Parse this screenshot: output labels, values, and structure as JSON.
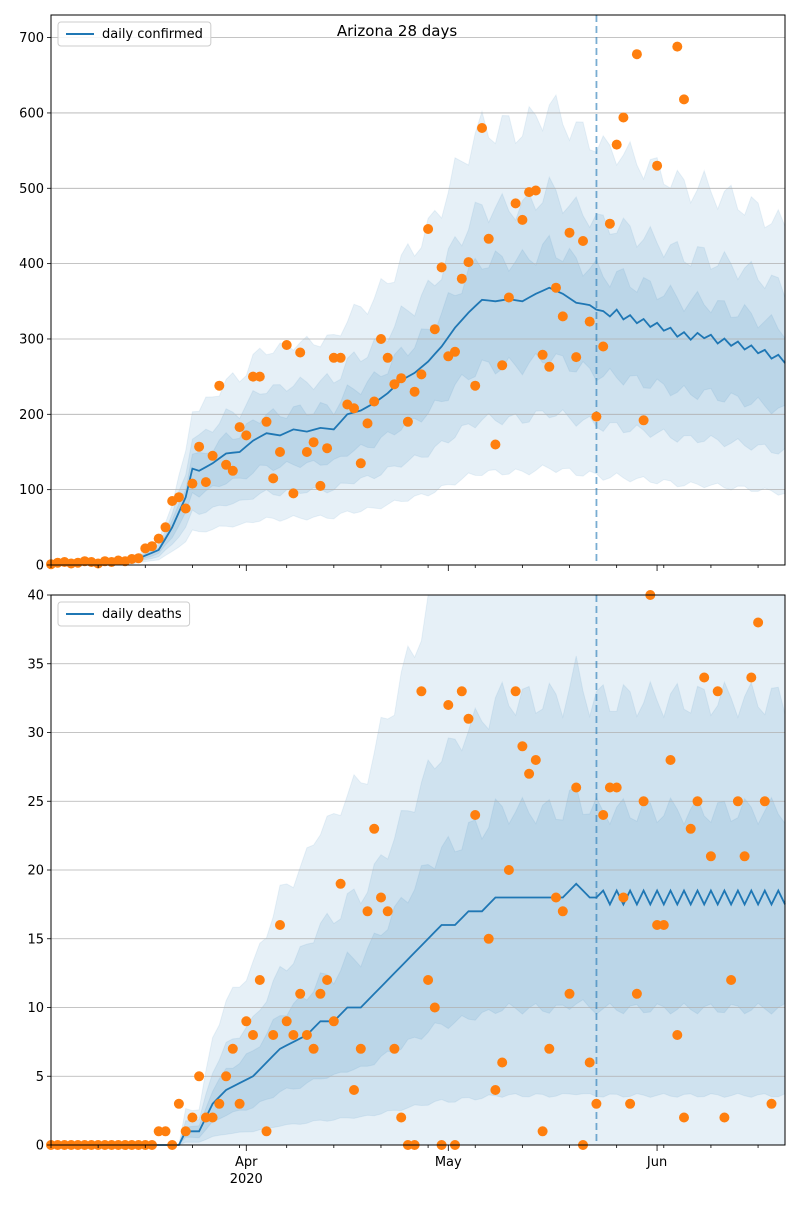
{
  "chart_data": [
    {
      "type": "line",
      "title": "Arizona 28 days",
      "legend": {
        "placement": "upper-left",
        "label": "daily confirmed"
      },
      "x_start": "2020-03-03",
      "x_end": "2020-06-20",
      "forecast_start": "2020-05-23",
      "ylim": [
        0,
        730
      ],
      "yticks": [
        0,
        100,
        200,
        300,
        400,
        500,
        600,
        700
      ],
      "xticks": [
        {
          "date": "2020-04-01",
          "label": "Apr",
          "sublabel": "2020"
        },
        {
          "date": "2020-05-01",
          "label": "May",
          "sublabel": ""
        },
        {
          "date": "2020-06-01",
          "label": "Jun",
          "sublabel": ""
        }
      ],
      "grid": "horizontal",
      "colors": {
        "line": "#1f77b4",
        "points": "#ff7f0e",
        "band": "#1f77b4"
      },
      "median_anchors": [
        [
          0,
          0
        ],
        [
          8,
          1
        ],
        [
          12,
          5
        ],
        [
          16,
          20
        ],
        [
          18,
          50
        ],
        [
          20,
          90
        ],
        [
          21,
          128
        ],
        [
          22,
          125
        ],
        [
          24,
          135
        ],
        [
          26,
          148
        ],
        [
          28,
          150
        ],
        [
          30,
          165
        ],
        [
          32,
          175
        ],
        [
          34,
          172
        ],
        [
          36,
          180
        ],
        [
          38,
          177
        ],
        [
          40,
          182
        ],
        [
          42,
          180
        ],
        [
          44,
          200
        ],
        [
          46,
          205
        ],
        [
          48,
          215
        ],
        [
          50,
          228
        ],
        [
          52,
          245
        ],
        [
          54,
          255
        ],
        [
          56,
          270
        ],
        [
          58,
          290
        ],
        [
          60,
          315
        ],
        [
          62,
          335
        ],
        [
          64,
          352
        ],
        [
          66,
          350
        ],
        [
          68,
          353
        ],
        [
          70,
          350
        ],
        [
          72,
          360
        ],
        [
          74,
          368
        ],
        [
          76,
          360
        ],
        [
          78,
          348
        ],
        [
          80,
          345
        ],
        [
          82,
          333
        ],
        [
          84,
          335
        ],
        [
          85,
          330
        ],
        [
          87,
          325
        ],
        [
          89,
          320
        ],
        [
          91,
          315
        ],
        [
          93,
          307
        ],
        [
          95,
          303
        ],
        [
          97,
          305
        ],
        [
          99,
          298
        ],
        [
          101,
          295
        ],
        [
          103,
          290
        ],
        [
          105,
          285
        ],
        [
          107,
          278
        ],
        [
          109,
          272
        ],
        [
          111,
          270
        ],
        [
          113,
          272
        ],
        [
          115,
          265
        ]
      ],
      "band_scales": [
        [
          0.35,
          1.65
        ],
        [
          0.55,
          1.35
        ],
        [
          0.75,
          1.15
        ]
      ],
      "observed": [
        [
          0,
          1
        ],
        [
          1,
          3
        ],
        [
          2,
          4
        ],
        [
          3,
          2
        ],
        [
          4,
          3
        ],
        [
          5,
          5
        ],
        [
          6,
          4
        ],
        [
          7,
          2
        ],
        [
          8,
          5
        ],
        [
          9,
          4
        ],
        [
          10,
          6
        ],
        [
          11,
          5
        ],
        [
          12,
          8
        ],
        [
          13,
          9
        ],
        [
          14,
          22
        ],
        [
          15,
          25
        ],
        [
          16,
          35
        ],
        [
          17,
          50
        ],
        [
          18,
          85
        ],
        [
          19,
          90
        ],
        [
          20,
          75
        ],
        [
          21,
          108
        ],
        [
          22,
          157
        ],
        [
          23,
          110
        ],
        [
          24,
          145
        ],
        [
          25,
          238
        ],
        [
          26,
          133
        ],
        [
          27,
          125
        ],
        [
          28,
          183
        ],
        [
          29,
          172
        ],
        [
          30,
          250
        ],
        [
          31,
          250
        ],
        [
          32,
          190
        ],
        [
          33,
          115
        ],
        [
          34,
          150
        ],
        [
          35,
          292
        ],
        [
          36,
          95
        ],
        [
          37,
          282
        ],
        [
          38,
          150
        ],
        [
          39,
          163
        ],
        [
          40,
          105
        ],
        [
          41,
          155
        ],
        [
          42,
          275
        ],
        [
          43,
          275
        ],
        [
          44,
          213
        ],
        [
          45,
          208
        ],
        [
          46,
          135
        ],
        [
          47,
          188
        ],
        [
          48,
          217
        ],
        [
          49,
          300
        ],
        [
          50,
          275
        ],
        [
          51,
          240
        ],
        [
          52,
          248
        ],
        [
          53,
          190
        ],
        [
          54,
          230
        ],
        [
          55,
          253
        ],
        [
          56,
          446
        ],
        [
          57,
          313
        ],
        [
          58,
          395
        ],
        [
          59,
          277
        ],
        [
          60,
          283
        ],
        [
          61,
          380
        ],
        [
          62,
          402
        ],
        [
          63,
          238
        ],
        [
          64,
          580
        ],
        [
          65,
          433
        ],
        [
          66,
          160
        ],
        [
          67,
          265
        ],
        [
          68,
          355
        ],
        [
          69,
          480
        ],
        [
          70,
          458
        ],
        [
          71,
          495
        ],
        [
          72,
          497
        ],
        [
          73,
          279
        ],
        [
          74,
          263
        ],
        [
          75,
          368
        ],
        [
          76,
          330
        ],
        [
          77,
          441
        ],
        [
          78,
          276
        ],
        [
          79,
          430
        ],
        [
          80,
          323
        ],
        [
          81,
          197
        ],
        [
          82,
          290
        ],
        [
          83,
          453
        ],
        [
          84,
          558
        ],
        [
          85,
          594
        ],
        [
          87,
          678
        ],
        [
          88,
          192
        ],
        [
          90,
          530
        ],
        [
          93,
          688
        ],
        [
          94,
          618
        ]
      ]
    },
    {
      "type": "line",
      "title": "",
      "legend": {
        "placement": "upper-left",
        "label": "daily deaths"
      },
      "x_start": "2020-03-03",
      "x_end": "2020-06-20",
      "forecast_start": "2020-05-23",
      "ylim": [
        0,
        40
      ],
      "yticks": [
        0,
        5,
        10,
        15,
        20,
        25,
        30,
        35,
        40
      ],
      "xticks": [
        {
          "date": "2020-04-01",
          "label": "Apr",
          "sublabel": "2020"
        },
        {
          "date": "2020-05-01",
          "label": "May",
          "sublabel": ""
        },
        {
          "date": "2020-06-01",
          "label": "Jun",
          "sublabel": ""
        }
      ],
      "grid": "horizontal",
      "colors": {
        "line": "#1f77b4",
        "points": "#ff7f0e",
        "band": "#1f77b4"
      },
      "median_anchors": [
        [
          0,
          0
        ],
        [
          19,
          0
        ],
        [
          20,
          1
        ],
        [
          22,
          1
        ],
        [
          24,
          3
        ],
        [
          26,
          4
        ],
        [
          30,
          5
        ],
        [
          32,
          6
        ],
        [
          34,
          7
        ],
        [
          38,
          8
        ],
        [
          40,
          9
        ],
        [
          42,
          9
        ],
        [
          44,
          10
        ],
        [
          46,
          10
        ],
        [
          48,
          11
        ],
        [
          50,
          12
        ],
        [
          52,
          13
        ],
        [
          54,
          14
        ],
        [
          56,
          15
        ],
        [
          58,
          16
        ],
        [
          60,
          16
        ],
        [
          62,
          17
        ],
        [
          64,
          17
        ],
        [
          66,
          18
        ],
        [
          68,
          18
        ],
        [
          70,
          18
        ],
        [
          72,
          18
        ],
        [
          74,
          18
        ],
        [
          76,
          18
        ],
        [
          78,
          19
        ],
        [
          80,
          18
        ],
        [
          82,
          18
        ],
        [
          84,
          18
        ],
        [
          86,
          18
        ],
        [
          88,
          18
        ],
        [
          90,
          18
        ],
        [
          92,
          18
        ],
        [
          94,
          18
        ],
        [
          96,
          18
        ],
        [
          98,
          18
        ],
        [
          100,
          18
        ],
        [
          102,
          18
        ],
        [
          104,
          18
        ],
        [
          106,
          18
        ],
        [
          108,
          18
        ],
        [
          110,
          18
        ],
        [
          112,
          18
        ],
        [
          114,
          18
        ],
        [
          115,
          18
        ]
      ],
      "band_scales": [
        [
          0.0,
          2.6
        ],
        [
          0.2,
          1.8
        ],
        [
          0.55,
          1.35
        ]
      ],
      "observed": [
        [
          0,
          0
        ],
        [
          1,
          0
        ],
        [
          2,
          0
        ],
        [
          3,
          0
        ],
        [
          4,
          0
        ],
        [
          5,
          0
        ],
        [
          6,
          0
        ],
        [
          7,
          0
        ],
        [
          8,
          0
        ],
        [
          9,
          0
        ],
        [
          10,
          0
        ],
        [
          11,
          0
        ],
        [
          12,
          0
        ],
        [
          13,
          0
        ],
        [
          14,
          0
        ],
        [
          15,
          0
        ],
        [
          16,
          1
        ],
        [
          17,
          1
        ],
        [
          18,
          0
        ],
        [
          19,
          3
        ],
        [
          20,
          1
        ],
        [
          21,
          2
        ],
        [
          22,
          5
        ],
        [
          23,
          2
        ],
        [
          24,
          2
        ],
        [
          25,
          3
        ],
        [
          26,
          5
        ],
        [
          27,
          7
        ],
        [
          28,
          3
        ],
        [
          29,
          9
        ],
        [
          30,
          8
        ],
        [
          31,
          12
        ],
        [
          32,
          1
        ],
        [
          33,
          8
        ],
        [
          34,
          16
        ],
        [
          35,
          9
        ],
        [
          36,
          8
        ],
        [
          37,
          11
        ],
        [
          38,
          8
        ],
        [
          39,
          7
        ],
        [
          40,
          11
        ],
        [
          41,
          12
        ],
        [
          42,
          9
        ],
        [
          43,
          19
        ],
        [
          45,
          4
        ],
        [
          46,
          7
        ],
        [
          47,
          17
        ],
        [
          48,
          23
        ],
        [
          49,
          18
        ],
        [
          50,
          17
        ],
        [
          51,
          7
        ],
        [
          52,
          2
        ],
        [
          53,
          0
        ],
        [
          54,
          0
        ],
        [
          55,
          33
        ],
        [
          56,
          12
        ],
        [
          57,
          10
        ],
        [
          58,
          0
        ],
        [
          59,
          32
        ],
        [
          60,
          0
        ],
        [
          61,
          33
        ],
        [
          62,
          31
        ],
        [
          63,
          24
        ],
        [
          65,
          15
        ],
        [
          66,
          4
        ],
        [
          67,
          6
        ],
        [
          68,
          20
        ],
        [
          69,
          33
        ],
        [
          70,
          29
        ],
        [
          71,
          27
        ],
        [
          72,
          28
        ],
        [
          73,
          1
        ],
        [
          74,
          7
        ],
        [
          75,
          18
        ],
        [
          76,
          17
        ],
        [
          77,
          11
        ],
        [
          78,
          26
        ],
        [
          79,
          0
        ],
        [
          80,
          6
        ],
        [
          81,
          3
        ],
        [
          82,
          24
        ],
        [
          83,
          26
        ],
        [
          84,
          26
        ],
        [
          85,
          18
        ],
        [
          86,
          3
        ],
        [
          87,
          11
        ],
        [
          88,
          25
        ],
        [
          89,
          40
        ],
        [
          90,
          16
        ],
        [
          91,
          16
        ],
        [
          92,
          28
        ],
        [
          93,
          8
        ],
        [
          94,
          2
        ],
        [
          95,
          23
        ],
        [
          96,
          25
        ],
        [
          97,
          34
        ],
        [
          98,
          21
        ],
        [
          99,
          33
        ],
        [
          100,
          2
        ],
        [
          101,
          12
        ],
        [
          102,
          25
        ],
        [
          103,
          21
        ],
        [
          104,
          34
        ],
        [
          105,
          38
        ],
        [
          106,
          25
        ],
        [
          107,
          3
        ]
      ]
    }
  ]
}
